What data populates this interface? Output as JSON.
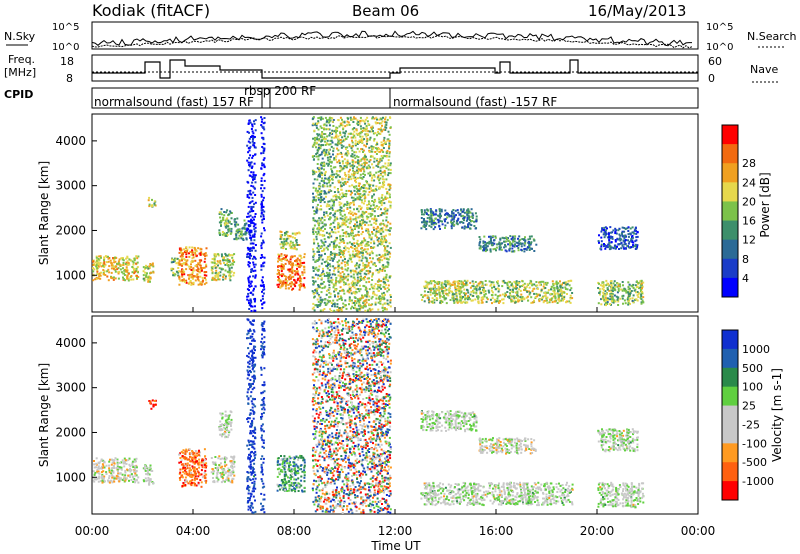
{
  "header": {
    "station": "Kodiak (fitACF)",
    "beam": "Beam 06",
    "date": "16/May/2013"
  },
  "side_labels": {
    "nsky": "N.Sky",
    "freq_line1": "Freq.",
    "freq_line2": "[MHz]",
    "cpid": "CPID",
    "nsearch": "N.Search",
    "nave": "Nave"
  },
  "strip_ticks": {
    "sky_top": "10^5",
    "sky_bottom": "10^0",
    "freq_top": "18",
    "freq_bottom": "8",
    "nave_top": "60",
    "nave_bottom": "0"
  },
  "cpid_labels": {
    "first": "normalsound (fast) 157 RF",
    "second": "rbsp 200 RF",
    "third": "normalsound (fast) -157 RF"
  },
  "colors": {
    "power_scale": [
      "#0000ff",
      "#1a3cc8",
      "#2b6a96",
      "#3d8f6b",
      "#7cc24a",
      "#e6d84c",
      "#f0a020",
      "#f26a10",
      "#ff0000"
    ],
    "velocity_scale": [
      "#1030d0",
      "#2060b0",
      "#2a8a4a",
      "#60d040",
      "#c8c8c8",
      "#c8c8c8",
      "#ff9a20",
      "#ff6010",
      "#ff0000"
    ]
  },
  "chart_data": [
    {
      "type": "heatmap",
      "name": "Power",
      "xlabel": "",
      "ylabel": "Slant Range [km]",
      "x_ticks": [
        "00:00",
        "04:00",
        "08:00",
        "12:00",
        "16:00",
        "20:00",
        "00:00"
      ],
      "y_ticks": [
        "1000",
        "2000",
        "3000",
        "4000"
      ],
      "xlim": [
        0,
        24
      ],
      "ylim": [
        180,
        4600
      ],
      "colorbar_label": "Power [dB]",
      "colorbar_ticks": [
        "4",
        "8",
        "12",
        "16",
        "20",
        "24",
        "28"
      ],
      "regions": [
        {
          "t": [
            0.0,
            1.8
          ],
          "r": [
            900,
            1450
          ],
          "level": 0.65
        },
        {
          "t": [
            2.0,
            2.4
          ],
          "r": [
            850,
            1300
          ],
          "level": 0.6
        },
        {
          "t": [
            2.2,
            2.5
          ],
          "r": [
            2550,
            2750
          ],
          "level": 0.55
        },
        {
          "t": [
            3.1,
            3.4
          ],
          "r": [
            1000,
            1400
          ],
          "level": 0.5
        },
        {
          "t": [
            3.4,
            4.5
          ],
          "r": [
            800,
            1650
          ],
          "level": 0.75
        },
        {
          "t": [
            4.7,
            5.6
          ],
          "r": [
            900,
            1500
          ],
          "level": 0.55
        },
        {
          "t": [
            5.0,
            5.5
          ],
          "r": [
            1900,
            2500
          ],
          "level": 0.45
        },
        {
          "t": [
            5.6,
            6.1
          ],
          "r": [
            1800,
            2300
          ],
          "level": 0.4
        },
        {
          "t": [
            7.3,
            8.4
          ],
          "r": [
            700,
            1500
          ],
          "level": 0.8
        },
        {
          "t": [
            7.4,
            8.2
          ],
          "r": [
            1600,
            2000
          ],
          "level": 0.55
        },
        {
          "t": [
            13.0,
            15.2
          ],
          "r": [
            2050,
            2500
          ],
          "level": 0.3
        },
        {
          "t": [
            15.3,
            17.6
          ],
          "r": [
            1550,
            1900
          ],
          "level": 0.35
        },
        {
          "t": [
            13.0,
            19.0
          ],
          "r": [
            400,
            900
          ],
          "level": 0.55
        },
        {
          "t": [
            20.0,
            21.6
          ],
          "r": [
            1600,
            2100
          ],
          "level": 0.2
        },
        {
          "t": [
            20.0,
            21.8
          ],
          "r": [
            350,
            900
          ],
          "level": 0.5
        }
      ],
      "noise_bands": [
        {
          "t": [
            6.1,
            6.45
          ],
          "level": 0.05
        },
        {
          "t": [
            6.65,
            6.8
          ],
          "level": 0.05
        },
        {
          "t": [
            8.7,
            9.6
          ],
          "level": 0.45
        },
        {
          "t": [
            9.6,
            11.8
          ],
          "level": 0.55
        }
      ]
    },
    {
      "type": "heatmap",
      "name": "Velocity",
      "xlabel": "Time UT",
      "ylabel": "Slant Range [km]",
      "x_ticks": [
        "00:00",
        "04:00",
        "08:00",
        "12:00",
        "16:00",
        "20:00",
        "00:00"
      ],
      "y_ticks": [
        "1000",
        "2000",
        "3000",
        "4000"
      ],
      "xlim": [
        0,
        24
      ],
      "ylim": [
        180,
        4600
      ],
      "colorbar_label": "Velocity [m s-1]",
      "colorbar_ticks": [
        "1000",
        "500",
        "100",
        "25",
        "-25",
        "-100",
        "-500",
        "-1000"
      ],
      "regions": [
        {
          "t": [
            0.0,
            1.8
          ],
          "r": [
            900,
            1450
          ],
          "level": 0.55
        },
        {
          "t": [
            2.0,
            2.4
          ],
          "r": [
            850,
            1300
          ],
          "level": 0.5
        },
        {
          "t": [
            2.2,
            2.5
          ],
          "r": [
            2550,
            2750
          ],
          "level": 0.9
        },
        {
          "t": [
            3.4,
            4.5
          ],
          "r": [
            800,
            1650
          ],
          "level": 0.8
        },
        {
          "t": [
            4.7,
            5.6
          ],
          "r": [
            900,
            1500
          ],
          "level": 0.55
        },
        {
          "t": [
            5.0,
            5.5
          ],
          "r": [
            1900,
            2500
          ],
          "level": 0.5
        },
        {
          "t": [
            7.3,
            8.4
          ],
          "r": [
            700,
            1500
          ],
          "level": 0.3
        },
        {
          "t": [
            13.0,
            15.2
          ],
          "r": [
            2050,
            2500
          ],
          "level": 0.5
        },
        {
          "t": [
            15.3,
            17.6
          ],
          "r": [
            1550,
            1900
          ],
          "level": 0.55
        },
        {
          "t": [
            13.0,
            19.0
          ],
          "r": [
            400,
            900
          ],
          "level": 0.5
        },
        {
          "t": [
            20.0,
            21.6
          ],
          "r": [
            1600,
            2100
          ],
          "level": 0.5
        },
        {
          "t": [
            20.0,
            21.8
          ],
          "r": [
            350,
            900
          ],
          "level": 0.5
        }
      ],
      "noise_bands": [
        {
          "t": [
            6.1,
            6.45
          ],
          "level": 0.05
        },
        {
          "t": [
            6.65,
            6.8
          ],
          "level": 0.05
        },
        {
          "t": [
            8.7,
            11.8
          ],
          "level": -1
        }
      ]
    }
  ]
}
